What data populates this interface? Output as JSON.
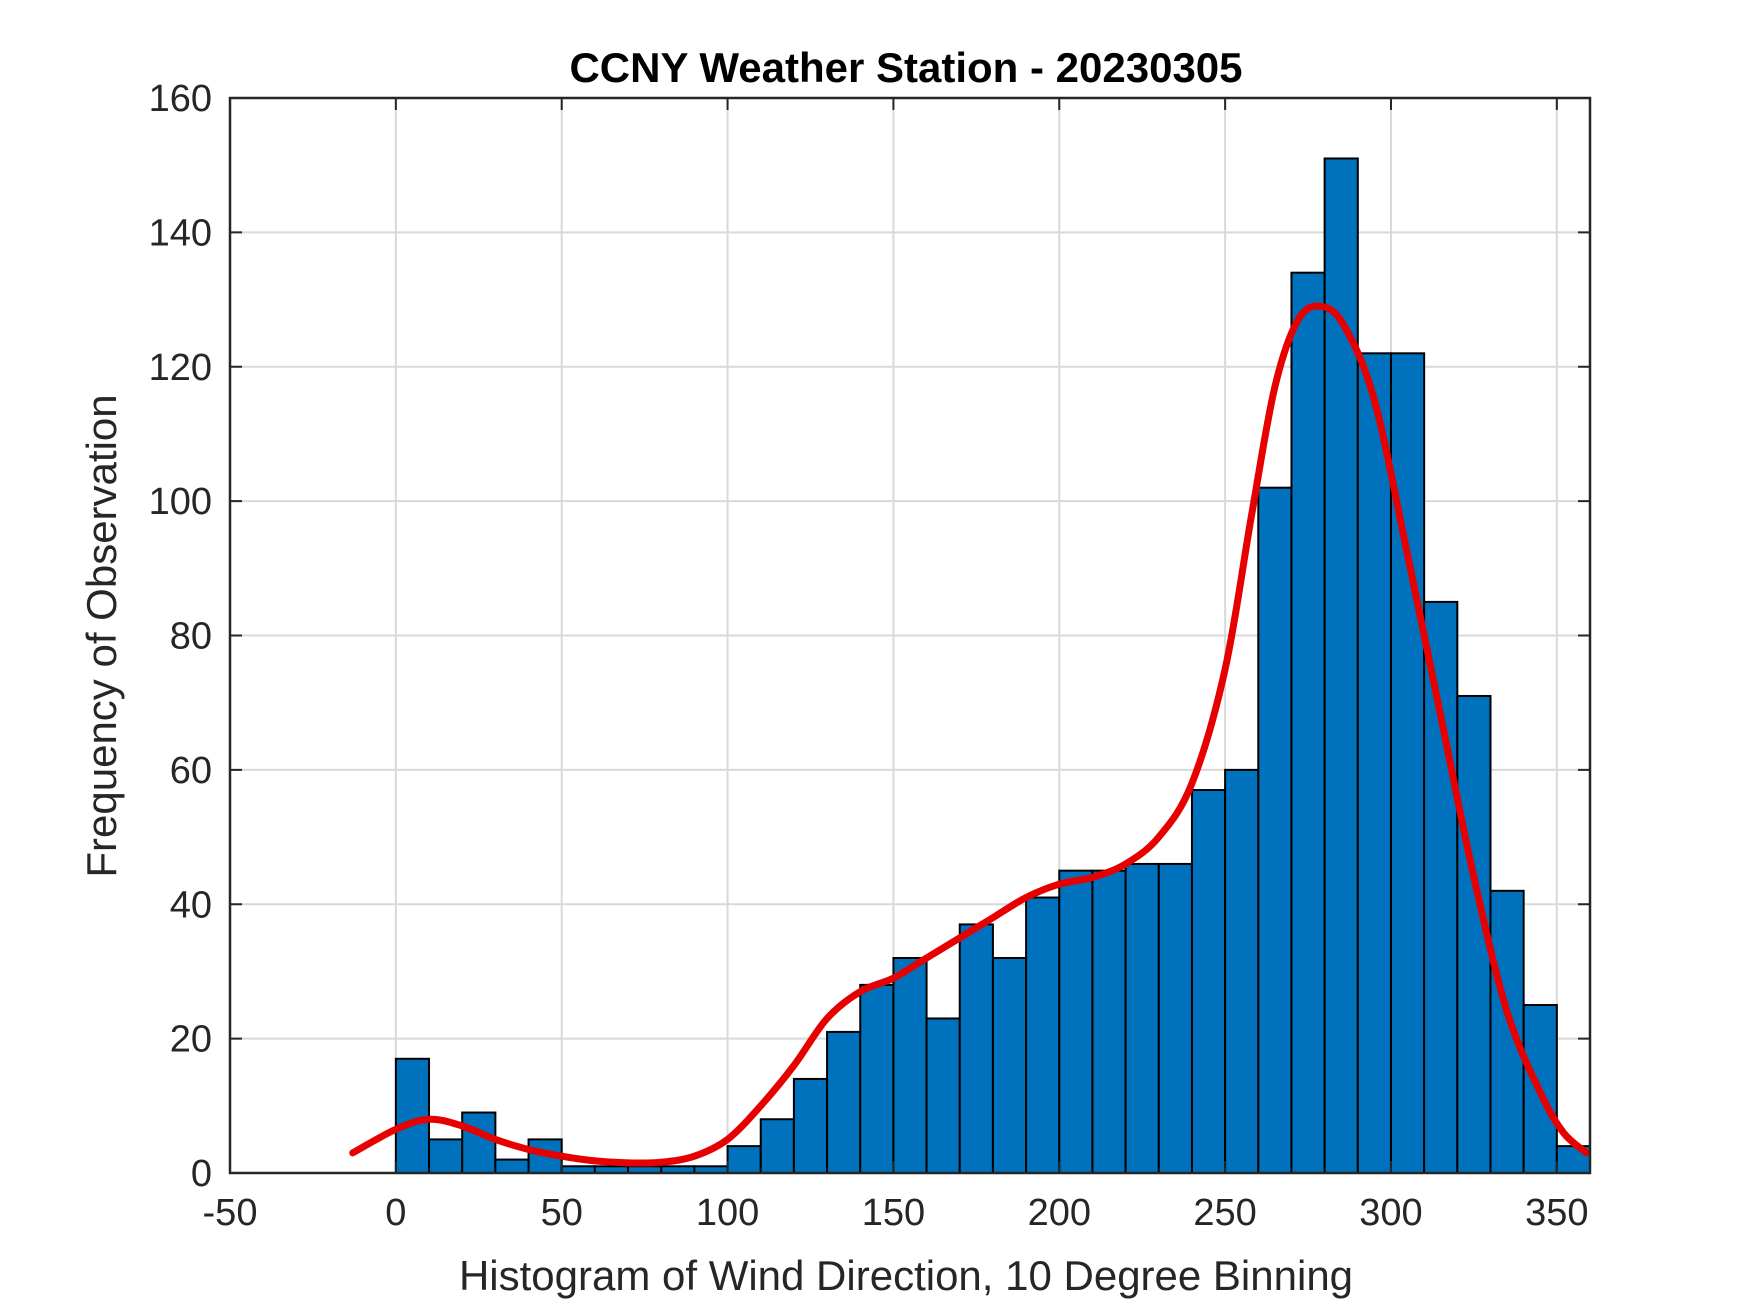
{
  "chart_data": {
    "type": "bar",
    "title": "CCNY Weather Station - 20230305",
    "xlabel": "Histogram of Wind Direction, 10 Degree Binning",
    "ylabel": "Frequency of Observation",
    "xlim": [
      -50,
      360
    ],
    "ylim": [
      0,
      160
    ],
    "xticks": [
      "-50",
      "0",
      "50",
      "100",
      "150",
      "200",
      "250",
      "300",
      "350"
    ],
    "yticks": [
      "0",
      "20",
      "40",
      "60",
      "80",
      "100",
      "120",
      "140",
      "160"
    ],
    "grid": true,
    "bin_width": 10,
    "bin_edges_start": [
      0,
      10,
      20,
      30,
      40,
      50,
      60,
      70,
      80,
      90,
      100,
      110,
      120,
      130,
      140,
      150,
      160,
      170,
      180,
      190,
      200,
      210,
      220,
      230,
      240,
      250,
      260,
      270,
      280,
      290,
      300,
      310,
      320,
      330,
      340,
      350
    ],
    "values": [
      17,
      5,
      9,
      2,
      5,
      1,
      1,
      1,
      1,
      1,
      4,
      8,
      14,
      21,
      28,
      32,
      23,
      37,
      32,
      41,
      45,
      45,
      46,
      46,
      57,
      60,
      102,
      134,
      151,
      122,
      122,
      85,
      71,
      42,
      25,
      4
    ],
    "bar_color": "#0072BD",
    "curve_color": "#E60000",
    "density_curve": {
      "x": [
        -13,
        0,
        10,
        20,
        30,
        40,
        50,
        60,
        70,
        80,
        90,
        100,
        110,
        120,
        130,
        140,
        150,
        160,
        170,
        180,
        190,
        200,
        210,
        220,
        230,
        240,
        250,
        258,
        265,
        272,
        279,
        286,
        295,
        305,
        315,
        325,
        335,
        345,
        352,
        359
      ],
      "y": [
        3,
        6.5,
        8,
        7,
        5,
        3.5,
        2.5,
        1.8,
        1.5,
        1.6,
        2.5,
        5,
        10,
        16,
        23,
        27,
        29,
        32,
        35,
        38,
        41,
        43,
        44,
        46,
        50,
        58,
        75,
        98,
        117,
        127,
        129,
        126,
        115,
        92,
        68,
        44,
        24,
        12,
        6,
        3
      ]
    }
  }
}
